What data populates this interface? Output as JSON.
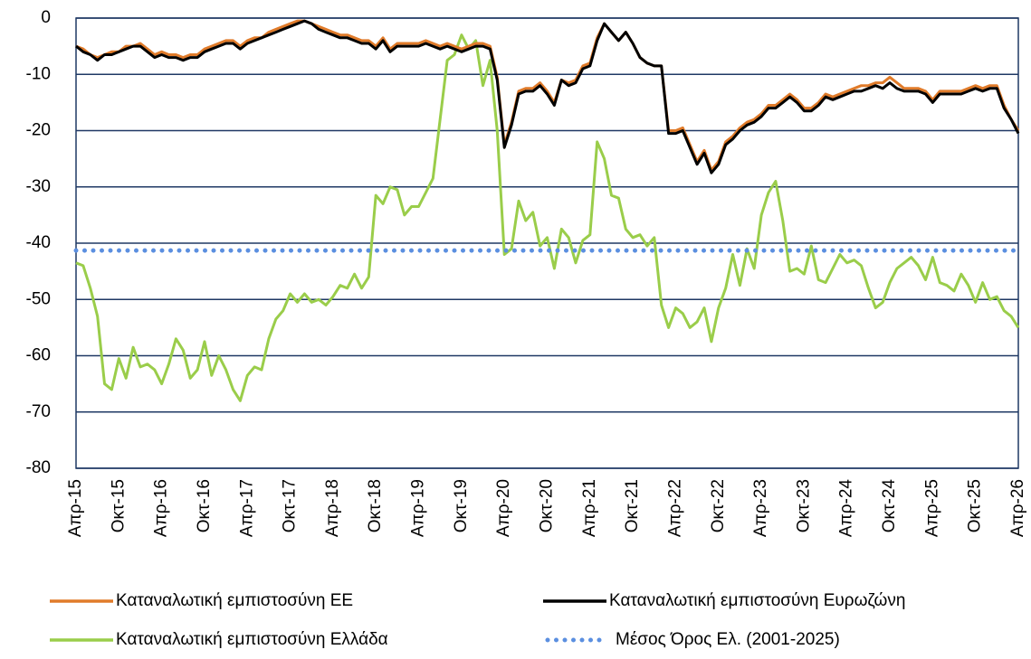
{
  "chart_data": {
    "type": "line",
    "categories": [
      "Απρ-15",
      null,
      null,
      null,
      null,
      null,
      "Οκτ-15",
      null,
      null,
      null,
      null,
      null,
      "Απρ-16",
      null,
      null,
      null,
      null,
      null,
      "Οκτ-16",
      null,
      null,
      null,
      null,
      null,
      "Απρ-17",
      null,
      null,
      null,
      null,
      null,
      "Οκτ-17",
      null,
      null,
      null,
      null,
      null,
      "Απρ-18",
      null,
      null,
      null,
      null,
      null,
      "Οκτ-18",
      null,
      null,
      null,
      null,
      null,
      "Απρ-19",
      null,
      null,
      null,
      null,
      null,
      "Οκτ-19",
      null,
      null,
      null,
      null,
      null,
      "Απρ-20",
      null,
      null,
      null,
      null,
      null,
      "Οκτ-20",
      null,
      null,
      null,
      null,
      null,
      "Απρ-21",
      null,
      null,
      null,
      null,
      null,
      "Οκτ-21",
      null,
      null,
      null,
      null,
      null,
      "Απρ-22",
      null,
      null,
      null,
      null,
      null,
      "Οκτ-22",
      null,
      null,
      null,
      null,
      null,
      "Απρ-23",
      null,
      null,
      null,
      null,
      null,
      "Οκτ-23",
      null,
      null,
      null,
      null,
      null,
      "Απρ-24",
      null,
      null,
      null,
      null,
      null,
      "Οκτ-24",
      null,
      null,
      null,
      null,
      null,
      "Απρ-25",
      null,
      null,
      null,
      null,
      null,
      "Οκτ-25",
      null,
      null,
      null,
      null,
      null,
      "Απρ-26"
    ],
    "series": [
      {
        "name": "Καταναλωτική εμπιστοσύνη ΕΕ",
        "color": "#e07b2a",
        "values": [
          -5,
          -5.5,
          -6.5,
          -7,
          -6.5,
          -6,
          -6,
          -5,
          -5,
          -4.5,
          -5.5,
          -6.5,
          -6,
          -6.5,
          -6.5,
          -7,
          -6.5,
          -6.5,
          -5.5,
          -5,
          -4.5,
          -4,
          -4,
          -5,
          -4,
          -3.5,
          -3.5,
          -2.5,
          -2,
          -1.5,
          -1,
          -0.5,
          -0.5,
          -1,
          -1.5,
          -2,
          -2.5,
          -3,
          -3,
          -3.5,
          -4,
          -4,
          -5,
          -3.5,
          -5.5,
          -4.5,
          -4.5,
          -4.5,
          -4.5,
          -4,
          -4.5,
          -5,
          -4.5,
          -5,
          -5.5,
          -5,
          -4.5,
          -4.5,
          -5,
          -10.5,
          -22.5,
          -18.5,
          -13,
          -12.5,
          -12.5,
          -11.5,
          -13,
          -15,
          -11,
          -11.5,
          -11,
          -8.5,
          -8,
          -3.5,
          -1,
          -2.5,
          -4,
          -2.5,
          -4.5,
          -7,
          -8,
          -8.5,
          -8.5,
          -20,
          -20,
          -19.5,
          -22.5,
          -25.5,
          -23.5,
          -27,
          -25.5,
          -22,
          -21,
          -19.5,
          -18.5,
          -18,
          -17,
          -15.5,
          -15.5,
          -14.5,
          -13.5,
          -14.5,
          -16,
          -16,
          -15,
          -13.5,
          -14,
          -13.5,
          -13,
          -12.5,
          -12,
          -12,
          -11.5,
          -11.5,
          -10.5,
          -11.5,
          -12.5,
          -12.5,
          -12.5,
          -13,
          -14.5,
          -13,
          -13,
          -13,
          -13,
          -12.5,
          -12,
          -12.5,
          -12,
          -12,
          -15.5,
          -18,
          -20
        ]
      },
      {
        "name": "Καταναλωτική εμπιστοσύνη Ευρωζώνη",
        "color": "#000000",
        "values": [
          -5,
          -6,
          -6.5,
          -7.5,
          -6.5,
          -6.5,
          -6,
          -5.5,
          -5,
          -5,
          -6,
          -7,
          -6.5,
          -7,
          -7,
          -7.5,
          -7,
          -7,
          -6,
          -5.5,
          -5,
          -4.5,
          -4.5,
          -5.5,
          -4.5,
          -4,
          -3.5,
          -3,
          -2.5,
          -2,
          -1.5,
          -1,
          -0.5,
          -1,
          -2,
          -2.5,
          -3,
          -3.5,
          -3.5,
          -4,
          -4.5,
          -4.5,
          -5.5,
          -4,
          -6,
          -5,
          -5,
          -5,
          -5,
          -4.5,
          -5,
          -5.5,
          -5,
          -5.5,
          -6,
          -5.5,
          -5,
          -5,
          -5.5,
          -11,
          -23,
          -19,
          -13.5,
          -13,
          -13,
          -12,
          -13.5,
          -15.5,
          -11,
          -12,
          -11.5,
          -9,
          -8.5,
          -4,
          -1,
          -2.5,
          -4,
          -2.5,
          -4.5,
          -7,
          -8,
          -8.5,
          -8.5,
          -20.5,
          -20.5,
          -20,
          -23,
          -26,
          -24,
          -27.5,
          -26,
          -22.5,
          -21.5,
          -20,
          -19,
          -18.5,
          -17.5,
          -16,
          -16,
          -15,
          -14,
          -15,
          -16.5,
          -16.5,
          -15.5,
          -14,
          -14.5,
          -14,
          -13.5,
          -13,
          -13,
          -12.5,
          -12,
          -12.5,
          -11.5,
          -12.5,
          -13,
          -13,
          -13,
          -13.5,
          -15,
          -13.5,
          -13.5,
          -13.5,
          -13.5,
          -13,
          -12.5,
          -13,
          -12.5,
          -12.5,
          -16,
          -18,
          -20.5
        ]
      },
      {
        "name": "Καταναλωτική εμπιστοσύνη Ελλάδα",
        "color": "#9acd4a",
        "values": [
          -43.5,
          -44,
          -48,
          -53,
          -65,
          -66,
          -60.5,
          -64,
          -58.5,
          -62,
          -61.5,
          -62.5,
          -65,
          -61.5,
          -57,
          -59,
          -64,
          -62.5,
          -57.5,
          -63.5,
          -60,
          -62.5,
          -66,
          -68,
          -63.5,
          -62,
          -62.5,
          -57,
          -53.5,
          -52,
          -49,
          -50.5,
          -49,
          -50.5,
          -50,
          -51,
          -49.5,
          -47.5,
          -48,
          -45.5,
          -48,
          -46,
          -31.5,
          -33,
          -30,
          -30.5,
          -35,
          -33.5,
          -33.5,
          -31,
          -28.5,
          -18,
          -7.5,
          -6.5,
          -3,
          -5.5,
          -4,
          -12,
          -7.5,
          -20,
          -42,
          -41,
          -32.5,
          -36,
          -34.5,
          -40.5,
          -39,
          -44.5,
          -37.5,
          -39,
          -43.5,
          -39.5,
          -38.5,
          -22,
          -25,
          -31.5,
          -32,
          -37.5,
          -39,
          -38.5,
          -40.5,
          -39,
          -51,
          -55,
          -51.5,
          -52.5,
          -55,
          -54,
          -51.5,
          -57.5,
          -51.5,
          -48,
          -42,
          -47.5,
          -41,
          -44.5,
          -35,
          -31,
          -29,
          -36,
          -45,
          -44.5,
          -45.5,
          -40.5,
          -46.5,
          -47,
          -44.5,
          -42,
          -43.5,
          -43,
          -44,
          -48,
          -51.5,
          -50.5,
          -47,
          -44.5,
          -43.5,
          -42.5,
          -44,
          -46.5,
          -42.5,
          -47,
          -47.5,
          -48.5,
          -45.5,
          -47.5,
          -50.5,
          -47,
          -50,
          -49.5,
          -52,
          -53,
          -55
        ]
      },
      {
        "name": "Μέσος Όρος Ελ. (2001-2025)",
        "color": "#5b8fe0",
        "dotted": true,
        "values": [
          -41.3,
          -41.3,
          -41.3,
          -41.3,
          -41.3,
          -41.3,
          -41.3,
          -41.3,
          -41.3,
          -41.3,
          -41.3,
          -41.3,
          -41.3,
          -41.3,
          -41.3,
          -41.3,
          -41.3,
          -41.3,
          -41.3,
          -41.3,
          -41.3,
          -41.3,
          -41.3,
          -41.3,
          -41.3,
          -41.3,
          -41.3,
          -41.3,
          -41.3,
          -41.3,
          -41.3,
          -41.3,
          -41.3,
          -41.3,
          -41.3,
          -41.3,
          -41.3,
          -41.3,
          -41.3,
          -41.3,
          -41.3,
          -41.3,
          -41.3,
          -41.3,
          -41.3,
          -41.3,
          -41.3,
          -41.3,
          -41.3,
          -41.3,
          -41.3,
          -41.3,
          -41.3,
          -41.3,
          -41.3,
          -41.3,
          -41.3,
          -41.3,
          -41.3,
          -41.3,
          -41.3,
          -41.3,
          -41.3,
          -41.3,
          -41.3,
          -41.3,
          -41.3,
          -41.3,
          -41.3,
          -41.3,
          -41.3,
          -41.3,
          -41.3,
          -41.3,
          -41.3,
          -41.3,
          -41.3,
          -41.3,
          -41.3,
          -41.3,
          -41.3,
          -41.3,
          -41.3,
          -41.3,
          -41.3,
          -41.3,
          -41.3,
          -41.3,
          -41.3,
          -41.3,
          -41.3,
          -41.3,
          -41.3,
          -41.3,
          -41.3,
          -41.3,
          -41.3,
          -41.3,
          -41.3,
          -41.3,
          -41.3,
          -41.3,
          -41.3,
          -41.3,
          -41.3,
          -41.3,
          -41.3,
          -41.3,
          -41.3,
          -41.3,
          -41.3,
          -41.3,
          -41.3,
          -41.3,
          -41.3,
          -41.3,
          -41.3,
          -41.3,
          -41.3,
          -41.3,
          -41.3,
          -41.3,
          -41.3,
          -41.3,
          -41.3,
          -41.3,
          -41.3,
          -41.3,
          -41.3,
          -41.3,
          -41.3,
          -41.3,
          -41.3
        ]
      }
    ],
    "ylim": [
      -80,
      0
    ],
    "yticks": [
      0,
      -10,
      -20,
      -30,
      -40,
      -50,
      -60,
      -70,
      -80
    ],
    "grid": true,
    "legend": "bottom"
  }
}
